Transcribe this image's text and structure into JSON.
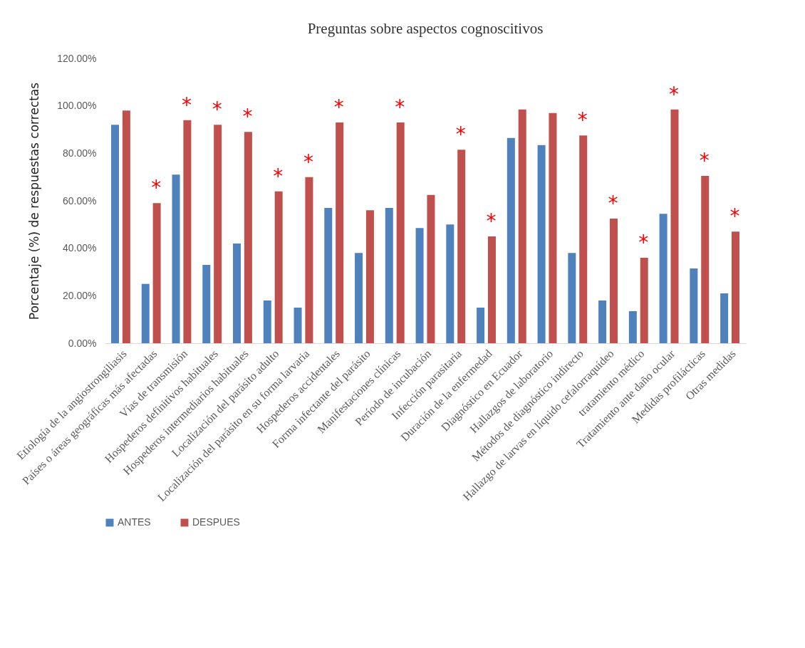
{
  "chart_data": {
    "type": "bar",
    "title": "Preguntas sobre aspectos cognoscitivos",
    "ylabel": "Porcentaje (%) de respuestas correctas",
    "categories": [
      "Etiología de la angiostrongiliasis",
      "Países o áreas geográficas más afectadas",
      "Vías de transmisión",
      "Hospederos definitivos habituales",
      "Hospederos intermediarios habituales",
      "Localización del parásito adulto",
      "Localización del parásito en su forma larvaria",
      "Hospederos accidentales",
      "Forma infectante del parásito",
      "Manifestaciones clínicas",
      "Período de incubación",
      "Infección parasitaria",
      "Duración de la enfermedad",
      "Diagnóstico en Ecuador",
      "Hallazgos de laboratorio",
      "Métodos de diagnóstico indirecto",
      "Hallazgo de larvas en líquido cefalorraquídeo",
      "tratamiento médico",
      "Tratamiento ante daño ocular",
      "Medidas profilácticas",
      "Otras medidas"
    ],
    "series": [
      {
        "name": "ANTES",
        "color": "#4f81bd",
        "values": [
          92,
          25,
          71,
          33,
          42,
          18,
          15,
          57,
          38,
          57,
          48.5,
          50,
          15,
          86.5,
          83.5,
          38,
          18,
          13.5,
          54.5,
          31.5,
          21
        ]
      },
      {
        "name": "DESPUES",
        "color": "#c0504d",
        "values": [
          98,
          59,
          94,
          92,
          89,
          64,
          70,
          93,
          56,
          93,
          62.5,
          81.5,
          45,
          98.5,
          97,
          87.5,
          52.5,
          36,
          98.5,
          70.5,
          47
        ]
      }
    ],
    "ylim": [
      0,
      120
    ],
    "yticks": [
      {
        "value": 0,
        "label": "0.00%"
      },
      {
        "value": 20,
        "label": "20.00%"
      },
      {
        "value": 40,
        "label": "40.00%"
      },
      {
        "value": 60,
        "label": "60.00%"
      },
      {
        "value": 80,
        "label": "80.00%"
      },
      {
        "value": 100,
        "label": "100.00%"
      },
      {
        "value": 120,
        "label": "120.00%"
      }
    ],
    "legend": "bottom",
    "grid": false,
    "annotations": [
      {
        "text": "*",
        "x": "Países o áreas geográficas más afectadas",
        "y": 59
      },
      {
        "text": "*",
        "x": "Vías de transmisión",
        "y": 94
      },
      {
        "text": "*",
        "x": "Hospederos definitivos habituales",
        "y": 92
      },
      {
        "text": "*",
        "x": "Hospederos intermediarios habituales",
        "y": 89
      },
      {
        "text": "*",
        "x": "Localización del parásito adulto",
        "y": 64
      },
      {
        "text": "*",
        "x": "Localización del parásito en su forma larvaria",
        "y": 70
      },
      {
        "text": "*",
        "x": "Hospederos accidentales",
        "y": 93
      },
      {
        "text": "*",
        "x": "Manifestaciones clínicas",
        "y": 93
      },
      {
        "text": "*",
        "x": "Infección parasitaria",
        "y": 81.5
      },
      {
        "text": "*",
        "x": "Duración de la enfermedad",
        "y": 45
      },
      {
        "text": "*",
        "x": "Métodos de diagnóstico indirecto",
        "y": 87.5
      },
      {
        "text": "*",
        "x": "Hallazgo de larvas en líquido cefalorraquídeo",
        "y": 52.5
      },
      {
        "text": "*",
        "x": "tratamiento médico",
        "y": 36
      },
      {
        "text": "*",
        "x": "Tratamiento ante daño ocular",
        "y": 98.5
      },
      {
        "text": "*",
        "x": "Medidas profilácticas",
        "y": 70.5
      },
      {
        "text": "*",
        "x": "Otras medidas",
        "y": 47
      }
    ]
  }
}
